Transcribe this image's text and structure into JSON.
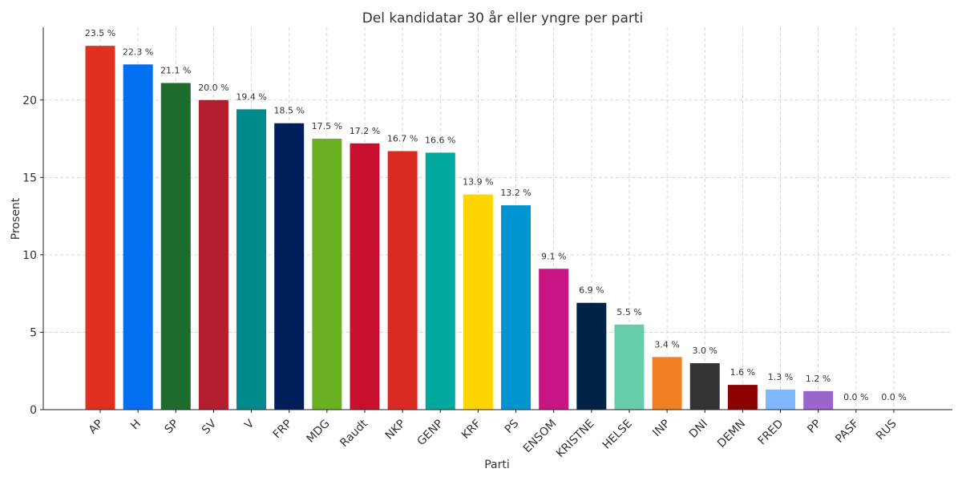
{
  "chart_data": {
    "type": "bar",
    "title": "Del kandidatar 30 år eller yngre per parti",
    "xlabel": "Parti",
    "ylabel": "Prosent",
    "ylim": [
      0,
      24.7
    ],
    "yticks": [
      0,
      5,
      10,
      15,
      20
    ],
    "grid": true,
    "categories": [
      "AP",
      "H",
      "SP",
      "SV",
      "V",
      "FRP",
      "MDG",
      "Raudt",
      "NKP",
      "GENP",
      "KRF",
      "PS",
      "ENSOM",
      "KRISTNE",
      "HELSE",
      "INP",
      "DNI",
      "DEMN",
      "FRED",
      "PP",
      "PASF",
      "RUS"
    ],
    "values": [
      23.5,
      22.3,
      21.1,
      20.0,
      19.4,
      18.5,
      17.5,
      17.2,
      16.7,
      16.6,
      13.9,
      13.2,
      9.1,
      6.9,
      5.5,
      3.4,
      3.0,
      1.6,
      1.3,
      1.2,
      0.0,
      0.0
    ],
    "value_labels": [
      "23.5 %",
      "22.3 %",
      "21.1 %",
      "20.0 %",
      "19.4 %",
      "18.5 %",
      "17.5 %",
      "17.2 %",
      "16.7 %",
      "16.6 %",
      "13.9 %",
      "13.2 %",
      "9.1 %",
      "6.9 %",
      "5.5 %",
      "3.4 %",
      "3.0 %",
      "1.6 %",
      "1.3 %",
      "1.2 %",
      "0.0 %",
      "0.0 %"
    ],
    "colors": [
      "#e03020",
      "#0070f0",
      "#1e6b2e",
      "#b31d2e",
      "#008a8a",
      "#001f5a",
      "#6ab023",
      "#c8102e",
      "#d92b21",
      "#00a99d",
      "#ffd500",
      "#0095d0",
      "#c71585",
      "#002244",
      "#66cdaa",
      "#f28022",
      "#333333",
      "#8b0000",
      "#80b8ff",
      "#9966cc",
      "#ffffff",
      "#ffffff"
    ]
  }
}
